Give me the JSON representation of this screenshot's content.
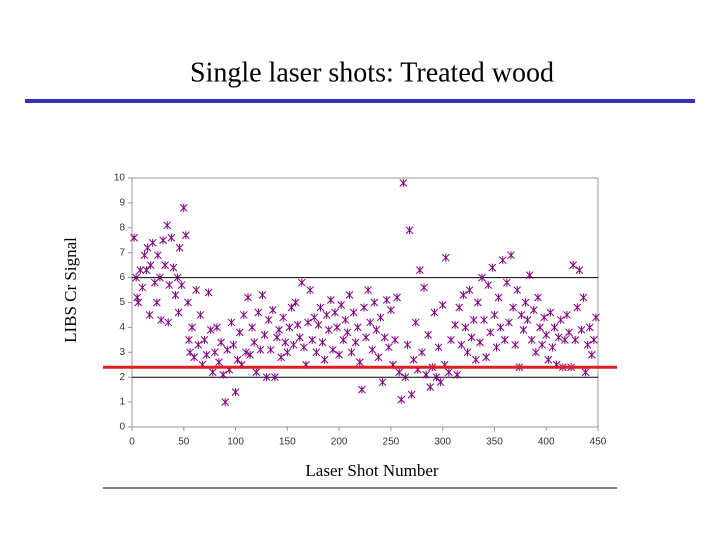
{
  "chart_data": {
    "type": "scatter",
    "title": "Single laser shots: Treated wood",
    "xlabel": "Laser Shot Number",
    "ylabel": "LIBS Cr Signal",
    "xlim": [
      0,
      450
    ],
    "ylim": [
      0,
      10
    ],
    "xticks": [
      0,
      50,
      100,
      150,
      200,
      250,
      300,
      350,
      400,
      450
    ],
    "yticks": [
      0,
      1,
      2,
      3,
      4,
      5,
      6,
      7,
      8,
      9,
      10
    ],
    "hlines": [
      2,
      6
    ],
    "threshold": {
      "value": 2.4,
      "color": "#e02020"
    },
    "series": [
      {
        "color": "#800080",
        "x": [
          2,
          4,
          5,
          6,
          8,
          10,
          12,
          14,
          15,
          17,
          18,
          20,
          22,
          24,
          25,
          27,
          28,
          30,
          32,
          34,
          35,
          36,
          38,
          40,
          42,
          44,
          45,
          46,
          48,
          50,
          52,
          54,
          55,
          56,
          58,
          60,
          62,
          64,
          66,
          68,
          70,
          72,
          74,
          76,
          78,
          80,
          82,
          84,
          86,
          88,
          90,
          92,
          94,
          96,
          98,
          100,
          102,
          104,
          106,
          108,
          110,
          112,
          114,
          116,
          118,
          120,
          122,
          124,
          126,
          128,
          130,
          132,
          134,
          136,
          138,
          140,
          142,
          144,
          146,
          148,
          150,
          152,
          154,
          156,
          158,
          160,
          162,
          164,
          166,
          168,
          170,
          172,
          174,
          176,
          178,
          180,
          182,
          184,
          186,
          188,
          190,
          192,
          194,
          196,
          198,
          200,
          202,
          204,
          206,
          208,
          210,
          212,
          214,
          216,
          218,
          220,
          222,
          224,
          226,
          228,
          230,
          232,
          234,
          236,
          238,
          240,
          242,
          244,
          246,
          248,
          250,
          252,
          254,
          256,
          258,
          260,
          262,
          264,
          266,
          268,
          270,
          272,
          274,
          276,
          278,
          280,
          282,
          284,
          286,
          288,
          290,
          292,
          294,
          296,
          298,
          300,
          302,
          303,
          306,
          308,
          312,
          314,
          316,
          318,
          320,
          322,
          324,
          326,
          328,
          330,
          332,
          334,
          336,
          338,
          340,
          342,
          344,
          346,
          348,
          350,
          352,
          354,
          356,
          358,
          360,
          362,
          364,
          366,
          368,
          370,
          372,
          374,
          376,
          378,
          380,
          382,
          384,
          386,
          388,
          390,
          392,
          394,
          396,
          398,
          400,
          402,
          404,
          406,
          408,
          410,
          412,
          414,
          416,
          418,
          420,
          422,
          424,
          426,
          428,
          430,
          432,
          434,
          436,
          438,
          440,
          442,
          444,
          446,
          448
        ],
        "values": [
          7.6,
          6.0,
          5.2,
          5.0,
          6.3,
          5.6,
          6.9,
          6.3,
          7.2,
          4.5,
          6.5,
          7.4,
          5.8,
          5.0,
          6.9,
          6.0,
          4.3,
          7.5,
          6.5,
          8.1,
          4.2,
          5.7,
          7.6,
          6.4,
          5.3,
          6.0,
          4.6,
          7.2,
          5.7,
          8.8,
          7.7,
          5.0,
          3.5,
          3.0,
          4.0,
          2.8,
          5.5,
          3.3,
          4.5,
          2.5,
          3.5,
          2.9,
          5.4,
          3.9,
          2.2,
          3.0,
          4.0,
          2.6,
          3.4,
          2.1,
          1.0,
          3.1,
          2.3,
          4.2,
          3.3,
          1.4,
          2.7,
          3.8,
          2.5,
          4.5,
          3.0,
          5.2,
          2.9,
          4.0,
          3.4,
          2.2,
          4.6,
          3.1,
          5.3,
          3.7,
          2.0,
          4.3,
          3.1,
          4.7,
          2.0,
          3.6,
          3.9,
          2.8,
          4.4,
          3.4,
          3.0,
          4.0,
          4.8,
          3.3,
          5.0,
          4.1,
          3.6,
          5.8,
          3.2,
          2.5,
          4.2,
          5.5,
          3.5,
          4.4,
          3.0,
          4.1,
          4.8,
          3.4,
          2.7,
          4.5,
          3.9,
          5.1,
          3.1,
          4.6,
          4.0,
          2.9,
          4.9,
          3.5,
          4.3,
          3.8,
          5.3,
          3.0,
          4.6,
          3.4,
          4.0,
          2.6,
          1.5,
          4.8,
          3.6,
          5.5,
          4.2,
          3.1,
          5.0,
          3.9,
          2.8,
          4.4,
          1.8,
          3.6,
          5.1,
          3.2,
          4.7,
          2.5,
          3.5,
          5.2,
          2.2,
          1.1,
          9.8,
          2.0,
          3.3,
          7.9,
          1.3,
          2.7,
          4.2,
          2.3,
          6.3,
          3.0,
          5.6,
          2.1,
          3.7,
          1.6,
          2.4,
          4.6,
          2.0,
          3.2,
          1.8,
          4.9,
          2.5,
          6.8,
          2.2,
          3.5,
          4.1,
          2.1,
          4.8,
          3.3,
          5.3,
          4.0,
          3.0,
          5.5,
          3.6,
          4.3,
          2.7,
          5.0,
          3.4,
          6.0,
          4.3,
          2.8,
          5.7,
          3.8,
          6.4,
          4.5,
          3.2,
          5.2,
          4.0,
          6.7,
          3.5,
          5.8,
          4.2,
          6.9,
          4.8,
          3.3,
          5.5,
          2.4,
          4.5,
          3.9,
          5.0,
          4.3,
          6.1,
          3.5,
          4.7,
          3.0,
          5.2,
          4.0,
          3.3,
          4.4,
          3.7,
          2.7,
          4.6,
          3.2,
          4.0,
          2.5,
          3.6,
          4.3,
          2.4,
          3.5,
          4.5,
          3.8,
          2.4,
          6.5,
          3.5,
          4.8,
          6.3,
          3.9,
          5.2,
          2.2,
          3.3,
          4.0,
          2.9,
          3.5,
          4.4
        ]
      }
    ]
  }
}
